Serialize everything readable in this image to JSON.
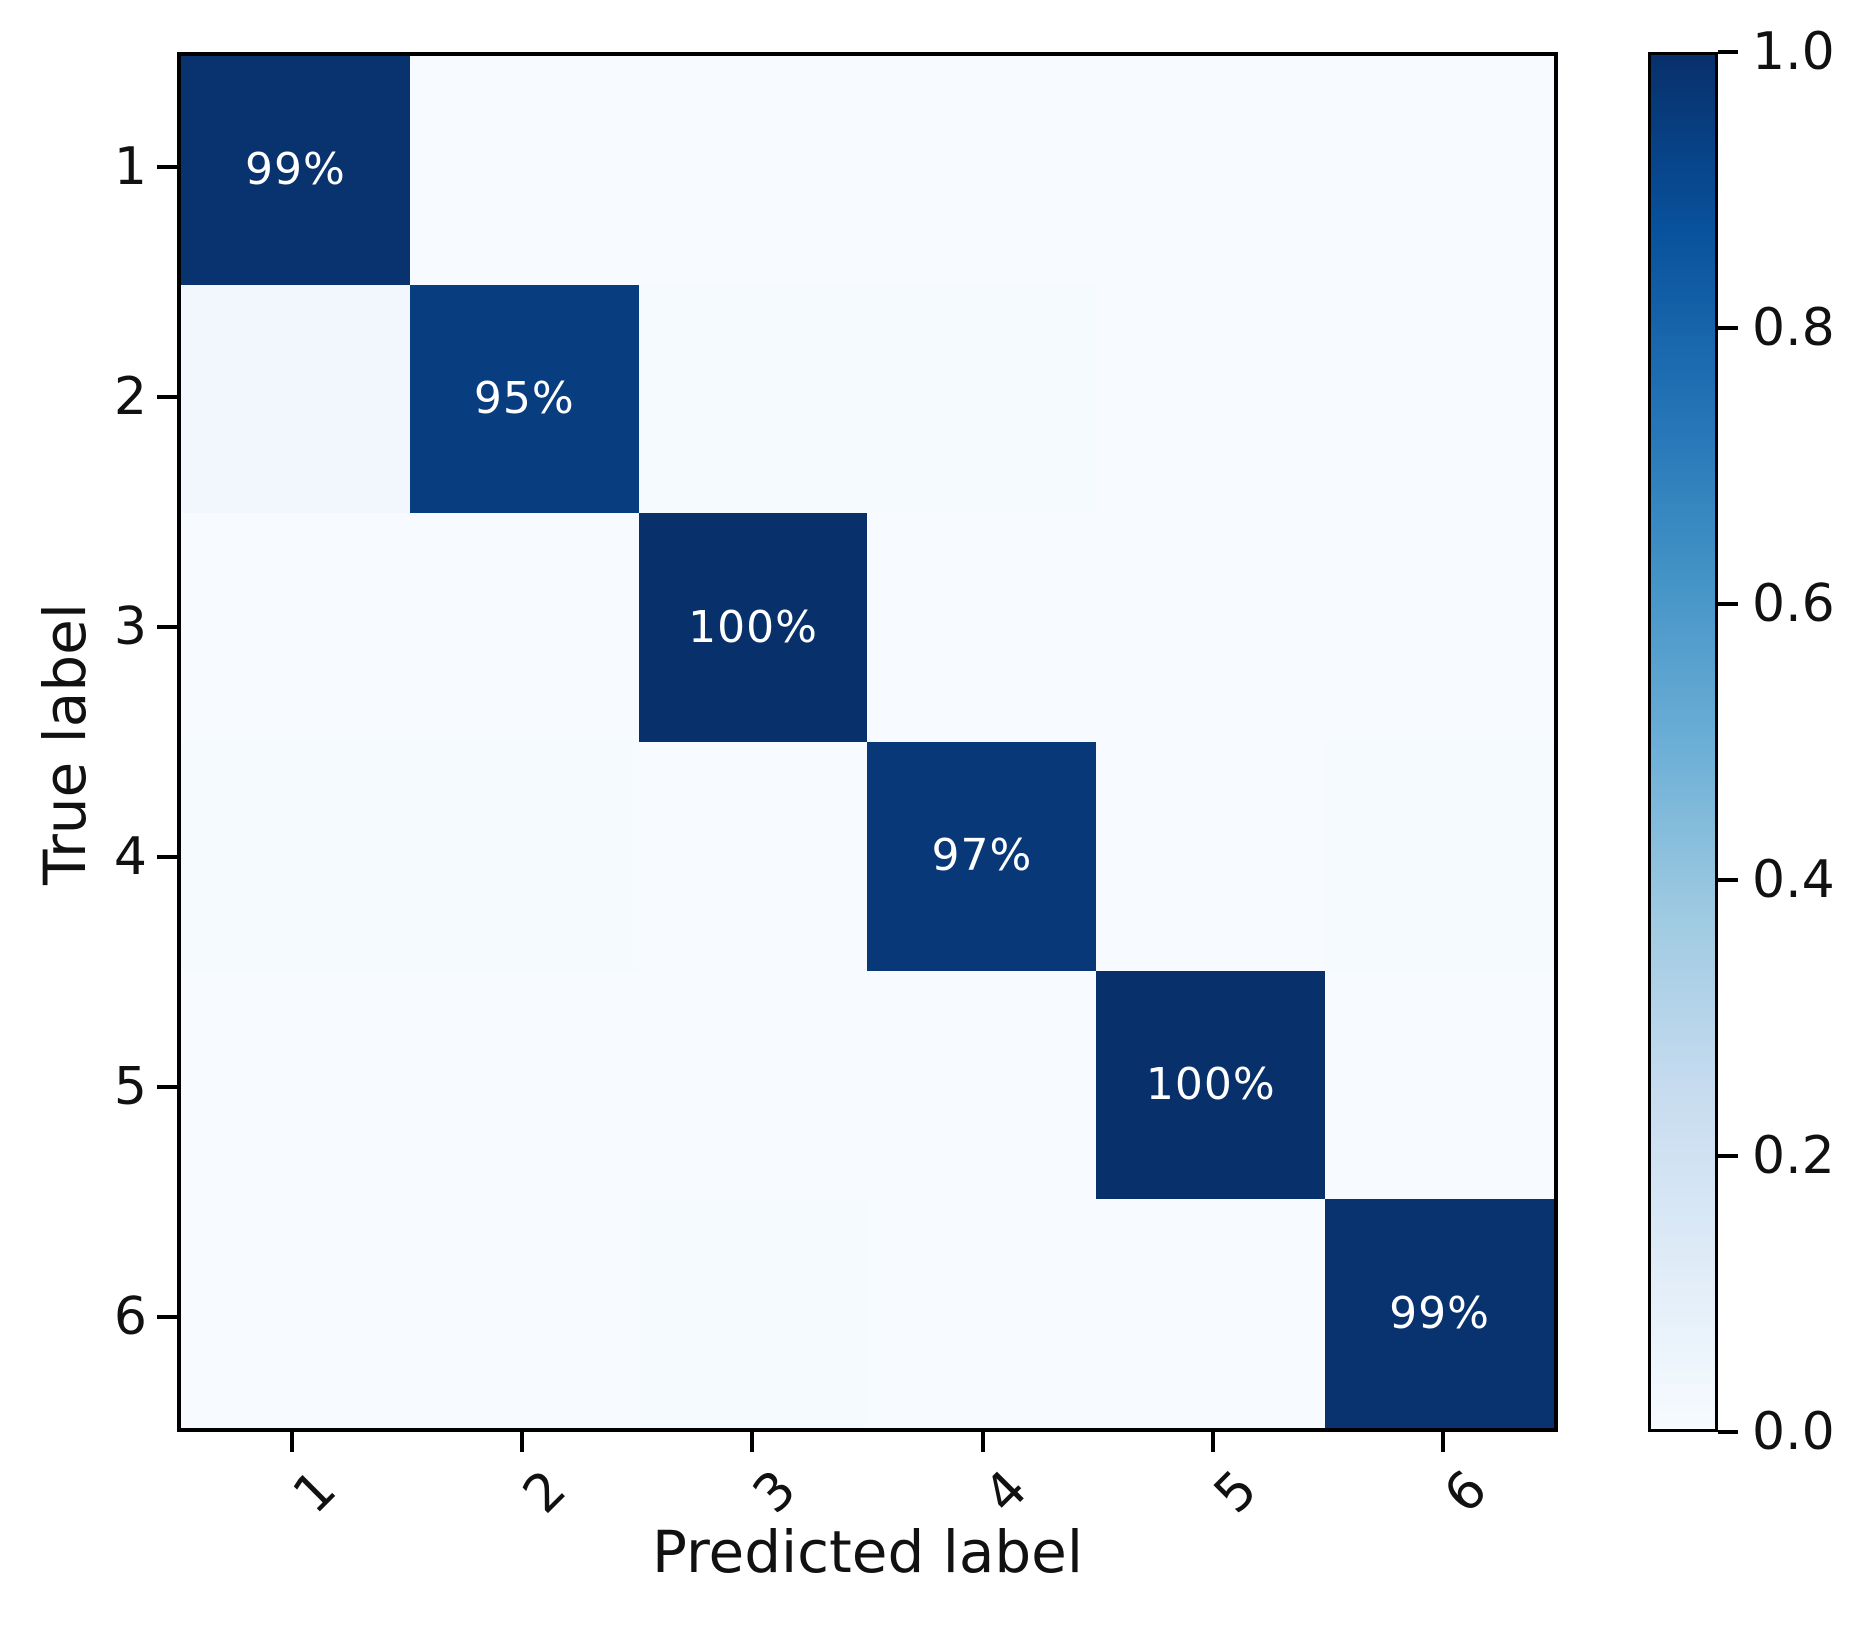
{
  "figure": {
    "background_color": "#ffffff",
    "spine_color": "#000000",
    "text_color": "#111111"
  },
  "chart_data": {
    "type": "heatmap",
    "title": "",
    "xlabel": "Predicted label",
    "ylabel": "True label",
    "x_categories": [
      "1",
      "2",
      "3",
      "4",
      "5",
      "6"
    ],
    "y_categories": [
      "1",
      "2",
      "3",
      "4",
      "5",
      "6"
    ],
    "matrix": [
      [
        0.99,
        0.0,
        0.0,
        0.0,
        0.0,
        0.0
      ],
      [
        0.03,
        0.95,
        0.01,
        0.01,
        0.0,
        0.0
      ],
      [
        0.0,
        0.0,
        1.0,
        0.0,
        0.0,
        0.0
      ],
      [
        0.01,
        0.01,
        0.0,
        0.97,
        0.0,
        0.01
      ],
      [
        0.0,
        0.0,
        0.0,
        0.0,
        1.0,
        0.0
      ],
      [
        0.0,
        0.0,
        0.01,
        0.0,
        0.0,
        0.99
      ]
    ],
    "cell_labels": [
      [
        "99%",
        "",
        "",
        "",
        "",
        ""
      ],
      [
        "",
        "95%",
        "",
        "",
        "",
        ""
      ],
      [
        "",
        "",
        "100%",
        "",
        "",
        ""
      ],
      [
        "",
        "",
        "",
        "97%",
        "",
        ""
      ],
      [
        "",
        "",
        "",
        "",
        "100%",
        ""
      ],
      [
        "",
        "",
        "",
        "",
        "",
        "99%"
      ]
    ],
    "value_label_color": "#ffffff",
    "vmin": 0.0,
    "vmax": 1.0,
    "colormap": "Blues",
    "colormap_anchors": [
      {
        "pos": 0.0,
        "color": "#f7fbff"
      },
      {
        "pos": 0.125,
        "color": "#deebf7"
      },
      {
        "pos": 0.25,
        "color": "#c6dbef"
      },
      {
        "pos": 0.375,
        "color": "#9ecae1"
      },
      {
        "pos": 0.5,
        "color": "#6baed6"
      },
      {
        "pos": 0.625,
        "color": "#4292c6"
      },
      {
        "pos": 0.75,
        "color": "#2171b5"
      },
      {
        "pos": 0.875,
        "color": "#08519c"
      },
      {
        "pos": 1.0,
        "color": "#08306b"
      }
    ],
    "colorbar_ticks": [
      {
        "label": "1.0",
        "value": 1.0
      },
      {
        "label": "0.8",
        "value": 0.8
      },
      {
        "label": "0.6",
        "value": 0.6
      },
      {
        "label": "0.4",
        "value": 0.4
      },
      {
        "label": "0.2",
        "value": 0.2
      },
      {
        "label": "0.0",
        "value": 0.0
      }
    ],
    "grid": false,
    "legend": "colorbar-right"
  }
}
